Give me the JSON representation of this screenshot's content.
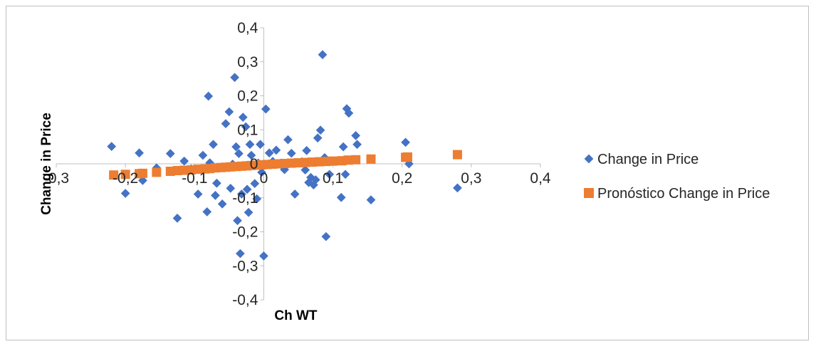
{
  "chart_data": {
    "type": "scatter",
    "xlabel": "Ch WT",
    "ylabel": "Change in Price",
    "xlim": [
      -0.3,
      0.4
    ],
    "ylim": [
      -0.4,
      0.4
    ],
    "x_ticks": [
      "-0,3",
      "-0,2",
      "-0,1",
      "0",
      "0,1",
      "0,2",
      "0,3",
      "0,4"
    ],
    "y_ticks": [
      "0,4",
      "0,3",
      "0,2",
      "0,1",
      "0",
      "-0,1",
      "-0,2",
      "-0,3",
      "-0,4"
    ],
    "x_tick_values": [
      -0.3,
      -0.2,
      -0.1,
      0,
      0.1,
      0.2,
      0.3,
      0.4
    ],
    "y_tick_values": [
      0.4,
      0.3,
      0.2,
      0.1,
      0,
      -0.1,
      -0.2,
      -0.3,
      -0.4
    ],
    "grid": false,
    "legend_position": "right",
    "series": [
      {
        "name": "Change in Price",
        "marker": "diamond",
        "color": "#4472C4",
        "points": [
          [
            -0.22,
            0.051
          ],
          [
            -0.2,
            -0.087
          ],
          [
            -0.18,
            0.032
          ],
          [
            -0.175,
            -0.049
          ],
          [
            -0.155,
            -0.012
          ],
          [
            -0.135,
            0.03
          ],
          [
            -0.125,
            -0.16
          ],
          [
            -0.115,
            0.008
          ],
          [
            -0.105,
            -0.015
          ],
          [
            -0.095,
            -0.089
          ],
          [
            -0.088,
            0.025
          ],
          [
            -0.082,
            -0.141
          ],
          [
            -0.08,
            0.199
          ],
          [
            -0.078,
            0.003
          ],
          [
            -0.073,
            0.057
          ],
          [
            -0.07,
            -0.093
          ],
          [
            -0.068,
            -0.057
          ],
          [
            -0.065,
            -0.01
          ],
          [
            -0.06,
            -0.118
          ],
          [
            -0.055,
            0.118
          ],
          [
            -0.05,
            0.153
          ],
          [
            -0.048,
            -0.072
          ],
          [
            -0.045,
            -0.001
          ],
          [
            -0.042,
            0.254
          ],
          [
            -0.04,
            0.05
          ],
          [
            -0.038,
            -0.167
          ],
          [
            -0.036,
            0.03
          ],
          [
            -0.034,
            -0.264
          ],
          [
            -0.032,
            -0.089
          ],
          [
            -0.03,
            0.137
          ],
          [
            -0.028,
            -0.006
          ],
          [
            -0.026,
            0.109
          ],
          [
            -0.024,
            -0.075
          ],
          [
            -0.022,
            -0.143
          ],
          [
            -0.02,
            0.057
          ],
          [
            -0.018,
            0.025
          ],
          [
            -0.015,
            -0.003
          ],
          [
            -0.013,
            -0.058
          ],
          [
            -0.01,
            -0.103
          ],
          [
            -0.008,
            0.002
          ],
          [
            -0.005,
            0.057
          ],
          [
            -0.003,
            -0.025
          ],
          [
            0.0,
            -0.271
          ],
          [
            0.003,
            0.161
          ],
          [
            0.008,
            0.032
          ],
          [
            0.013,
            0.007
          ],
          [
            0.018,
            0.04
          ],
          [
            0.025,
            -0.002
          ],
          [
            0.03,
            -0.017
          ],
          [
            0.035,
            0.071
          ],
          [
            0.04,
            0.031
          ],
          [
            0.045,
            -0.089
          ],
          [
            0.055,
            0.006
          ],
          [
            0.06,
            -0.018
          ],
          [
            0.062,
            0.039
          ],
          [
            0.065,
            -0.055
          ],
          [
            0.068,
            -0.04
          ],
          [
            0.072,
            -0.062
          ],
          [
            0.075,
            -0.047
          ],
          [
            0.078,
            0.076
          ],
          [
            0.082,
            0.099
          ],
          [
            0.085,
            0.321
          ],
          [
            0.088,
            0.018
          ],
          [
            0.09,
            -0.214
          ],
          [
            0.095,
            -0.031
          ],
          [
            0.112,
            -0.099
          ],
          [
            0.115,
            0.05
          ],
          [
            0.118,
            -0.031
          ],
          [
            0.12,
            0.162
          ],
          [
            0.123,
            0.149
          ],
          [
            0.128,
            0.01
          ],
          [
            0.133,
            0.083
          ],
          [
            0.135,
            0.057
          ],
          [
            0.155,
            -0.106
          ],
          [
            0.205,
            0.063
          ],
          [
            0.21,
            0.0
          ],
          [
            0.28,
            -0.071
          ]
        ]
      },
      {
        "name": "Pronóstico Change in Price",
        "marker": "square",
        "color": "#ED7D31",
        "points": [
          [
            -0.217,
            -0.033
          ],
          [
            -0.2,
            -0.031
          ],
          [
            -0.18,
            -0.029
          ],
          [
            -0.175,
            -0.028
          ],
          [
            -0.155,
            -0.025
          ],
          [
            -0.135,
            -0.022
          ],
          [
            -0.125,
            -0.02
          ],
          [
            -0.115,
            -0.019
          ],
          [
            -0.105,
            -0.018
          ],
          [
            -0.095,
            -0.016
          ],
          [
            -0.085,
            -0.015
          ],
          [
            -0.078,
            -0.014
          ],
          [
            -0.07,
            -0.012
          ],
          [
            -0.062,
            -0.011
          ],
          [
            -0.055,
            -0.01
          ],
          [
            -0.048,
            -0.009
          ],
          [
            -0.04,
            -0.008
          ],
          [
            -0.032,
            -0.007
          ],
          [
            -0.025,
            -0.006
          ],
          [
            -0.018,
            -0.005
          ],
          [
            -0.01,
            -0.004
          ],
          [
            -0.003,
            -0.003
          ],
          [
            0.005,
            -0.002
          ],
          [
            0.013,
            -0.001
          ],
          [
            0.02,
            0.0
          ],
          [
            0.03,
            0.001
          ],
          [
            0.04,
            0.002
          ],
          [
            0.05,
            0.003
          ],
          [
            0.06,
            0.004
          ],
          [
            0.07,
            0.005
          ],
          [
            0.08,
            0.006
          ],
          [
            0.09,
            0.007
          ],
          [
            0.1,
            0.008
          ],
          [
            0.113,
            0.009
          ],
          [
            0.122,
            0.011
          ],
          [
            0.133,
            0.012
          ],
          [
            0.155,
            0.014
          ],
          [
            0.205,
            0.019
          ],
          [
            0.208,
            0.02
          ],
          [
            0.28,
            0.027
          ]
        ]
      }
    ]
  }
}
